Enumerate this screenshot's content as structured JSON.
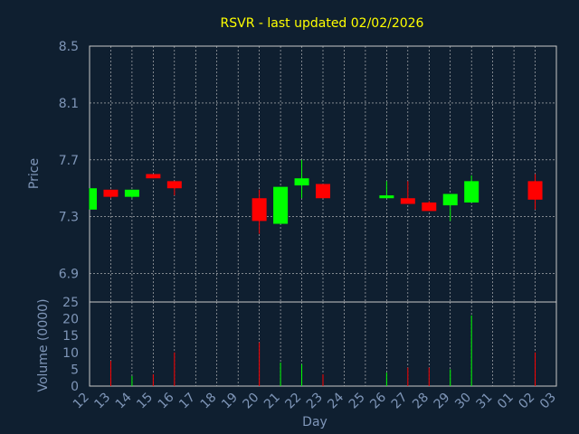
{
  "chart_data": {
    "type": "candlestick",
    "title": "RSVR - last updated 02/02/2026",
    "price_panel": {
      "ylabel": "Price",
      "ylim": [
        6.7,
        8.5
      ],
      "yticks": [
        "8.5",
        "8.1",
        "7.7",
        "7.3",
        "6.9"
      ]
    },
    "volume_panel": {
      "ylabel": "Volume (0000)",
      "ylim": [
        0,
        25
      ],
      "yticks": [
        "25",
        "20",
        "15",
        "10",
        "5",
        "0"
      ]
    },
    "xlabel": "Day",
    "x_labels": [
      "12",
      "13",
      "14",
      "15",
      "16",
      "17",
      "18",
      "19",
      "20",
      "21",
      "22",
      "23",
      "24",
      "25",
      "26",
      "27",
      "28",
      "29",
      "30",
      "31",
      "01",
      "02",
      "03"
    ],
    "colors": {
      "up": "#00ff00",
      "down": "#ff0000"
    },
    "candles": [
      {
        "day": "12",
        "open": 7.35,
        "high": 7.5,
        "low": 7.35,
        "close": 7.5,
        "volume": 0
      },
      {
        "day": "13",
        "open": 7.49,
        "high": 7.49,
        "low": 7.43,
        "close": 7.44,
        "volume": 7.5
      },
      {
        "day": "14",
        "open": 7.44,
        "high": 7.49,
        "low": 7.43,
        "close": 7.49,
        "volume": 3
      },
      {
        "day": "15",
        "open": 7.6,
        "high": 7.6,
        "low": 7.57,
        "close": 7.57,
        "volume": 3.5
      },
      {
        "day": "16",
        "open": 7.55,
        "high": 7.55,
        "low": 7.45,
        "close": 7.5,
        "volume": 10
      },
      {
        "day": "20",
        "open": 7.43,
        "high": 7.49,
        "low": 7.18,
        "close": 7.27,
        "volume": 13
      },
      {
        "day": "21",
        "open": 7.25,
        "high": 7.51,
        "low": 7.25,
        "close": 7.51,
        "volume": 7
      },
      {
        "day": "22",
        "open": 7.52,
        "high": 7.7,
        "low": 7.43,
        "close": 7.57,
        "volume": 6.5
      },
      {
        "day": "23",
        "open": 7.53,
        "high": 7.53,
        "low": 7.43,
        "close": 7.43,
        "volume": 3.5
      },
      {
        "day": "26",
        "open": 7.43,
        "high": 7.55,
        "low": 7.43,
        "close": 7.45,
        "volume": 4
      },
      {
        "day": "27",
        "open": 7.43,
        "high": 7.55,
        "low": 7.39,
        "close": 7.39,
        "volume": 5.5
      },
      {
        "day": "28",
        "open": 7.4,
        "high": 7.41,
        "low": 7.34,
        "close": 7.34,
        "volume": 5.5
      },
      {
        "day": "29",
        "open": 7.38,
        "high": 7.46,
        "low": 7.27,
        "close": 7.46,
        "volume": 5
      },
      {
        "day": "30",
        "open": 7.4,
        "high": 7.59,
        "low": 7.4,
        "close": 7.55,
        "volume": 21
      },
      {
        "day": "02",
        "open": 7.55,
        "high": 7.6,
        "low": 7.35,
        "close": 7.42,
        "volume": 10
      }
    ]
  }
}
